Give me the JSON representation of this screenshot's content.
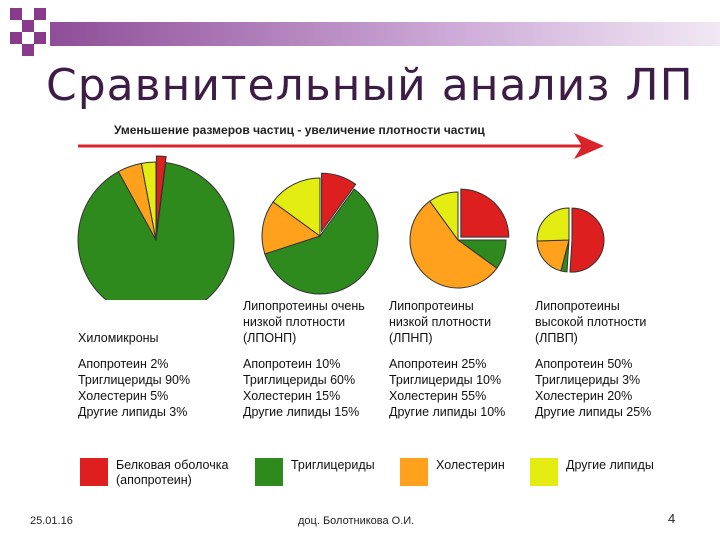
{
  "slide": {
    "title": "Сравнительный анализ ЛП",
    "footer_date": "25.01.16",
    "footer_author": "доц. Болотникова О.И.",
    "page_number": "4",
    "accent_color": "#8a3a8a"
  },
  "chart_data": {
    "type": "pie",
    "title": "Сравнительный анализ ЛП",
    "arrow_caption": "Уменьшение размеров частиц - увеличение плотности частиц",
    "components": [
      {
        "name": "Белковая оболочка (апопротеин)",
        "color": "#dd1f1f"
      },
      {
        "name": "Триглицериды",
        "color": "#2f8a1e"
      },
      {
        "name": "Холестерин",
        "color": "#ffa11c"
      },
      {
        "name": "Другие липиды",
        "color": "#e3ed12"
      }
    ],
    "charts": [
      {
        "name": [
          "Хиломикроны"
        ],
        "values": [
          2,
          90,
          5,
          3
        ]
      },
      {
        "name": [
          "Липопротеины очень",
          "низкой плотности",
          "(ЛПОНП)"
        ],
        "values": [
          10,
          60,
          15,
          15
        ]
      },
      {
        "name": [
          "Липопротеины",
          "низкой плотности",
          "(ЛПНП)"
        ],
        "values": [
          25,
          10,
          55,
          10
        ]
      },
      {
        "name": [
          "Липопротеины",
          "высокой плотности",
          "(ЛПВП)"
        ],
        "values": [
          50,
          3,
          20,
          25
        ]
      }
    ],
    "composition_lines": [
      [
        "Апопротеин 2%",
        "Триглицериды 90%",
        "Холестерин 5%",
        "Другие липиды 3%"
      ],
      [
        "Апопротеин 10%",
        "Триглицериды 60%",
        "Холестерин 15%",
        "Другие липиды 15%"
      ],
      [
        "Апопротеин 25%",
        "Триглицериды 10%",
        "Холестерин 55%",
        "Другие липиды 10%"
      ],
      [
        "Апопротеин 50%",
        "Триглицериды 3%",
        "Холестерин 20%",
        "Другие липиды 25%"
      ]
    ],
    "legend": [
      {
        "label": "Белковая оболочка\n(апопротеин)"
      },
      {
        "label": "Триглицериды"
      },
      {
        "label": "Холестерин"
      },
      {
        "label": "Другие липиды"
      }
    ]
  }
}
